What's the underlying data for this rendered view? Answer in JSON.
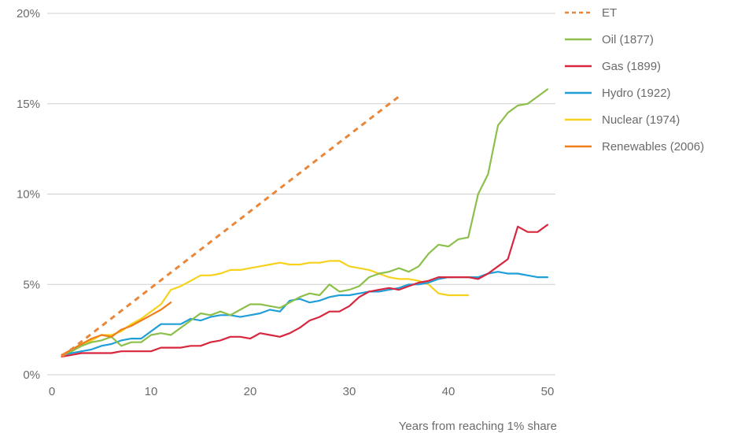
{
  "chart_data": {
    "type": "line",
    "xlabel": "Years from reaching 1% share",
    "ylabel": "",
    "xlim": [
      0,
      50
    ],
    "ylim": [
      0,
      20
    ],
    "x_ticks": [
      "0",
      "10",
      "20",
      "30",
      "40",
      "50"
    ],
    "y_ticks": [
      "0%",
      "5%",
      "10%",
      "15%",
      "20%"
    ],
    "grid": "horizontal",
    "legend_position": "right",
    "series": [
      {
        "name": "ET",
        "color": "#e8863a",
        "dashed": true,
        "x": [
          1,
          35
        ],
        "y": [
          1.0,
          15.4
        ]
      },
      {
        "name": "Oil (1877)",
        "color": "#8cc04a",
        "dashed": false,
        "x": [
          1,
          2,
          3,
          4,
          5,
          6,
          7,
          8,
          9,
          10,
          11,
          12,
          13,
          14,
          15,
          16,
          17,
          18,
          19,
          20,
          21,
          22,
          23,
          24,
          25,
          26,
          27,
          28,
          29,
          30,
          31,
          32,
          33,
          34,
          35,
          36,
          37,
          38,
          39,
          40,
          41,
          42,
          43,
          44,
          45,
          46,
          47,
          48,
          49,
          50
        ],
        "y": [
          1.1,
          1.3,
          1.6,
          1.8,
          1.9,
          2.1,
          1.6,
          1.8,
          1.8,
          2.2,
          2.3,
          2.2,
          2.6,
          3.0,
          3.4,
          3.3,
          3.5,
          3.3,
          3.6,
          3.9,
          3.9,
          3.8,
          3.7,
          4.0,
          4.3,
          4.5,
          4.4,
          5.0,
          4.6,
          4.7,
          4.9,
          5.4,
          5.6,
          5.7,
          5.9,
          5.7,
          6.0,
          6.7,
          7.2,
          7.1,
          7.5,
          7.6,
          10.0,
          11.1,
          13.8,
          14.5,
          14.9,
          15.0,
          15.4,
          15.8
        ]
      },
      {
        "name": "Gas (1899)",
        "color": "#d7263d",
        "dashed": false,
        "x": [
          1,
          2,
          3,
          4,
          5,
          6,
          7,
          8,
          9,
          10,
          11,
          12,
          13,
          14,
          15,
          16,
          17,
          18,
          19,
          20,
          21,
          22,
          23,
          24,
          25,
          26,
          27,
          28,
          29,
          30,
          31,
          32,
          33,
          34,
          35,
          36,
          37,
          38,
          39,
          40,
          41,
          42,
          43,
          44,
          45,
          46,
          47,
          48,
          49,
          50
        ],
        "y": [
          1.0,
          1.1,
          1.2,
          1.2,
          1.2,
          1.2,
          1.3,
          1.3,
          1.3,
          1.3,
          1.5,
          1.5,
          1.5,
          1.6,
          1.6,
          1.8,
          1.9,
          2.1,
          2.1,
          2.0,
          2.3,
          2.2,
          2.1,
          2.3,
          2.6,
          3.0,
          3.2,
          3.5,
          3.5,
          3.8,
          4.3,
          4.6,
          4.7,
          4.8,
          4.7,
          4.9,
          5.1,
          5.2,
          5.4,
          5.4,
          5.4,
          5.4,
          5.3,
          5.6,
          6.0,
          6.4,
          8.2,
          7.9,
          7.9,
          8.3
        ]
      },
      {
        "name": "Hydro (1922)",
        "color": "#1f9ed8",
        "dashed": false,
        "x": [
          1,
          2,
          3,
          4,
          5,
          6,
          7,
          8,
          9,
          10,
          11,
          12,
          13,
          14,
          15,
          16,
          17,
          18,
          19,
          20,
          21,
          22,
          23,
          24,
          25,
          26,
          27,
          28,
          29,
          30,
          31,
          32,
          33,
          34,
          35,
          36,
          37,
          38,
          39,
          40,
          41,
          42,
          43,
          44,
          45,
          46,
          47,
          48,
          49,
          50
        ],
        "y": [
          1.1,
          1.2,
          1.3,
          1.4,
          1.6,
          1.7,
          1.9,
          2.0,
          2.0,
          2.4,
          2.8,
          2.8,
          2.8,
          3.1,
          3.0,
          3.2,
          3.3,
          3.3,
          3.2,
          3.3,
          3.4,
          3.6,
          3.5,
          4.1,
          4.2,
          4.0,
          4.1,
          4.3,
          4.4,
          4.4,
          4.5,
          4.6,
          4.6,
          4.7,
          4.8,
          5.0,
          5.0,
          5.1,
          5.3,
          5.4,
          5.4,
          5.4,
          5.4,
          5.6,
          5.7,
          5.6,
          5.6,
          5.5,
          5.4,
          5.4
        ]
      },
      {
        "name": "Nuclear (1974)",
        "color": "#f6d21d",
        "dashed": false,
        "x": [
          1,
          2,
          3,
          4,
          5,
          6,
          7,
          8,
          9,
          10,
          11,
          12,
          13,
          14,
          15,
          16,
          17,
          18,
          19,
          20,
          21,
          22,
          23,
          24,
          25,
          26,
          27,
          28,
          29,
          30,
          31,
          32,
          33,
          34,
          35,
          36,
          37,
          38,
          39,
          40,
          41,
          42
        ],
        "y": [
          1.1,
          1.3,
          1.6,
          1.9,
          2.2,
          2.2,
          2.4,
          2.8,
          3.1,
          3.5,
          3.9,
          4.7,
          4.9,
          5.2,
          5.5,
          5.5,
          5.6,
          5.8,
          5.8,
          5.9,
          6.0,
          6.1,
          6.2,
          6.1,
          6.1,
          6.2,
          6.2,
          6.3,
          6.3,
          6.0,
          5.9,
          5.8,
          5.6,
          5.4,
          5.3,
          5.3,
          5.2,
          5.0,
          4.5,
          4.4,
          4.4,
          4.4
        ]
      },
      {
        "name": "Renewables (2006)",
        "color": "#ef7d1a",
        "dashed": false,
        "x": [
          1,
          2,
          3,
          4,
          5,
          6,
          7,
          8,
          9,
          10,
          11,
          12
        ],
        "y": [
          1.1,
          1.4,
          1.7,
          2.0,
          2.2,
          2.1,
          2.5,
          2.7,
          3.0,
          3.3,
          3.6,
          4.0
        ]
      }
    ]
  }
}
